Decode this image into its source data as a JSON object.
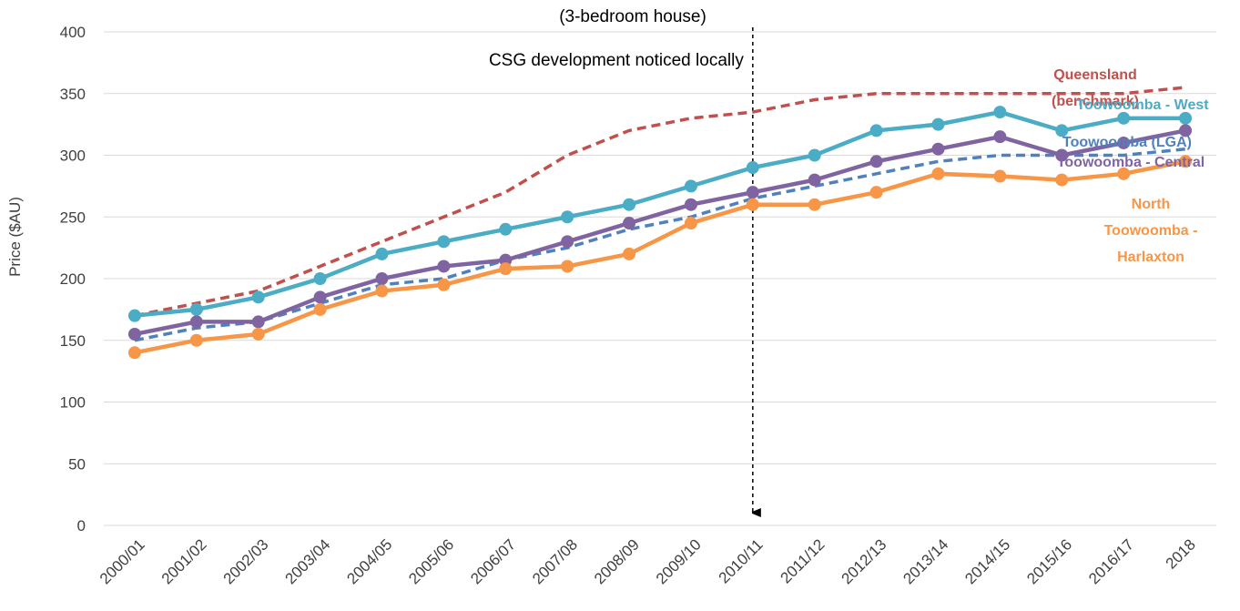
{
  "chart_data": {
    "type": "line",
    "title": "(3-bedroom house)",
    "y_label": "Price ($AU)",
    "annotation": {
      "text": "CSG development noticed locally",
      "category": "2010/11"
    },
    "categories": [
      "2000/01",
      "2001/02",
      "2002/03",
      "2003/04",
      "2004/05",
      "2005/06",
      "2006/07",
      "2007/08",
      "2008/09",
      "2009/10",
      "2010/11",
      "2011/12",
      "2012/13",
      "2013/14",
      "2014/15",
      "2015/16",
      "2016/17",
      "2018"
    ],
    "ylim": [
      0,
      400
    ],
    "yticks": [
      0,
      50,
      100,
      150,
      200,
      250,
      300,
      350,
      400
    ],
    "grid": true,
    "series": [
      {
        "name": "Queensland (benchmark)",
        "color": "#c0504d",
        "dashed": true,
        "markers": false,
        "values": [
          170,
          180,
          190,
          210,
          230,
          250,
          270,
          300,
          320,
          330,
          335,
          345,
          350,
          350,
          350,
          350,
          350,
          355
        ]
      },
      {
        "name": "Toowoomba - West",
        "color": "#4bacc6",
        "dashed": false,
        "markers": true,
        "values": [
          170,
          175,
          185,
          200,
          220,
          230,
          240,
          250,
          260,
          275,
          290,
          300,
          320,
          325,
          335,
          320,
          330,
          330
        ]
      },
      {
        "name": "Toowoomba (LGA)",
        "color": "#4f81bd",
        "dashed": true,
        "markers": false,
        "values": [
          150,
          160,
          165,
          180,
          195,
          200,
          215,
          225,
          240,
          250,
          265,
          275,
          285,
          295,
          300,
          300,
          300,
          305
        ]
      },
      {
        "name": "Toowoomba - Central",
        "color": "#8064a2",
        "dashed": false,
        "markers": true,
        "values": [
          155,
          165,
          165,
          185,
          200,
          210,
          215,
          230,
          245,
          260,
          270,
          280,
          295,
          305,
          315,
          300,
          310,
          320
        ]
      },
      {
        "name": "North Toowoomba - Harlaxton",
        "color": "#f79646",
        "dashed": false,
        "markers": true,
        "values": [
          140,
          150,
          155,
          175,
          190,
          195,
          208,
          210,
          220,
          245,
          260,
          260,
          270,
          285,
          283,
          280,
          285,
          295
        ]
      }
    ]
  }
}
